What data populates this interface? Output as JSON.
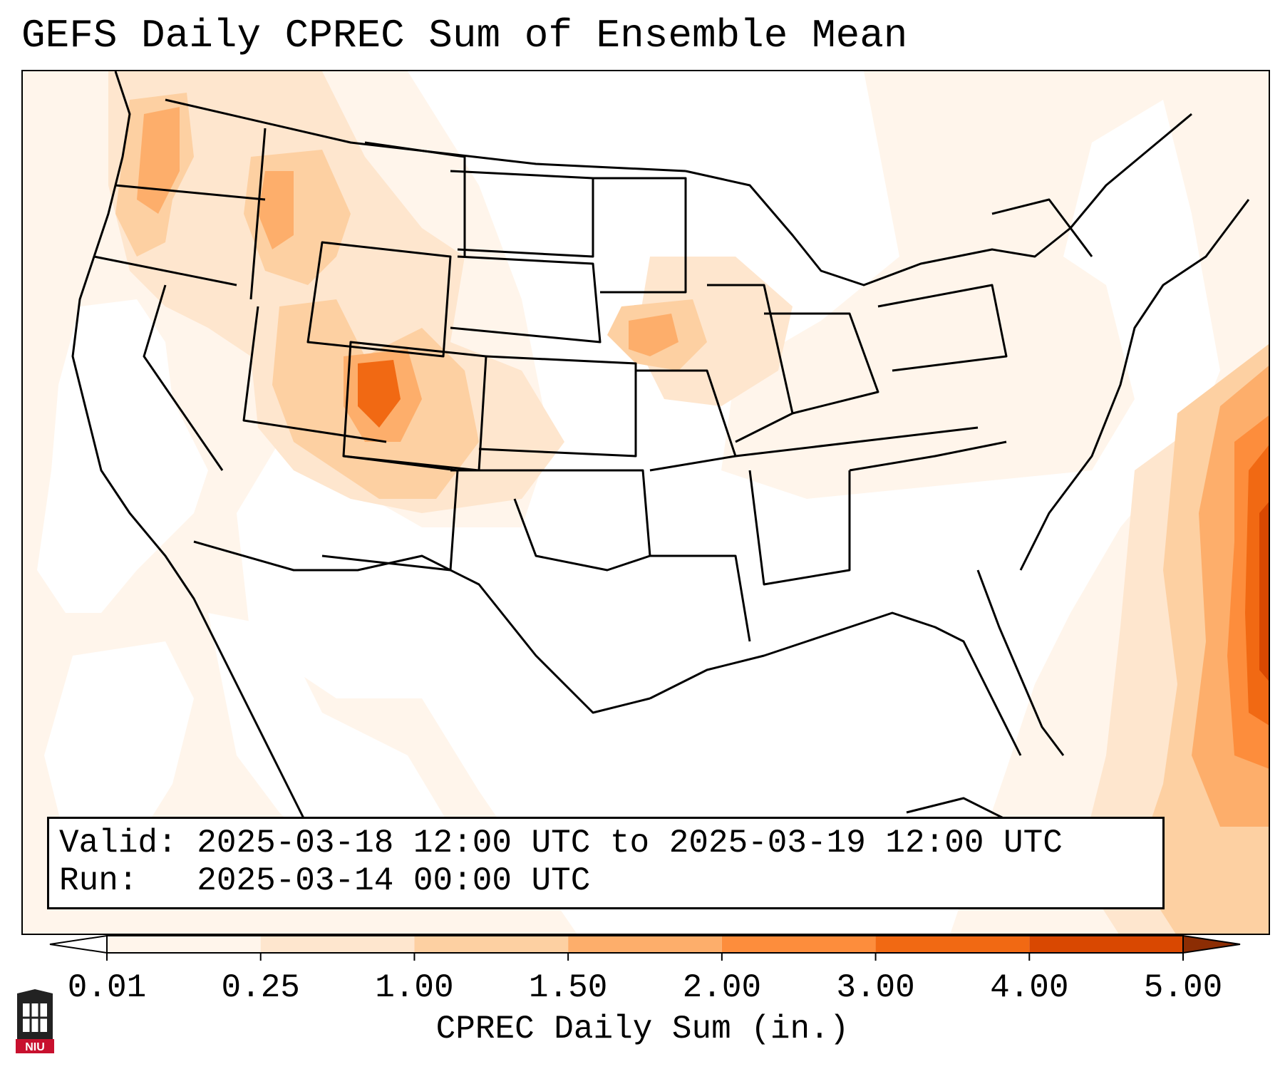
{
  "title": "GEFS Daily CPREC Sum of Ensemble Mean",
  "info": {
    "valid_label": "Valid:",
    "valid_value": "2025-03-18 12:00 UTC to 2025-03-19 12:00 UTC",
    "run_label": "Run:",
    "run_value": "2025-03-14 00:00 UTC"
  },
  "colorbar": {
    "label": "CPREC Daily Sum (in.)",
    "levels": [
      "0.01",
      "0.25",
      "1.00",
      "1.50",
      "2.00",
      "3.00",
      "4.00",
      "5.00"
    ],
    "colors": [
      "#fff5eb",
      "#fee6ce",
      "#fdd0a2",
      "#fdae6b",
      "#fd8d3c",
      "#f16913",
      "#d94801",
      "#8c2d04"
    ]
  },
  "logo": {
    "text": "NIU",
    "color": "#c8102e"
  }
}
